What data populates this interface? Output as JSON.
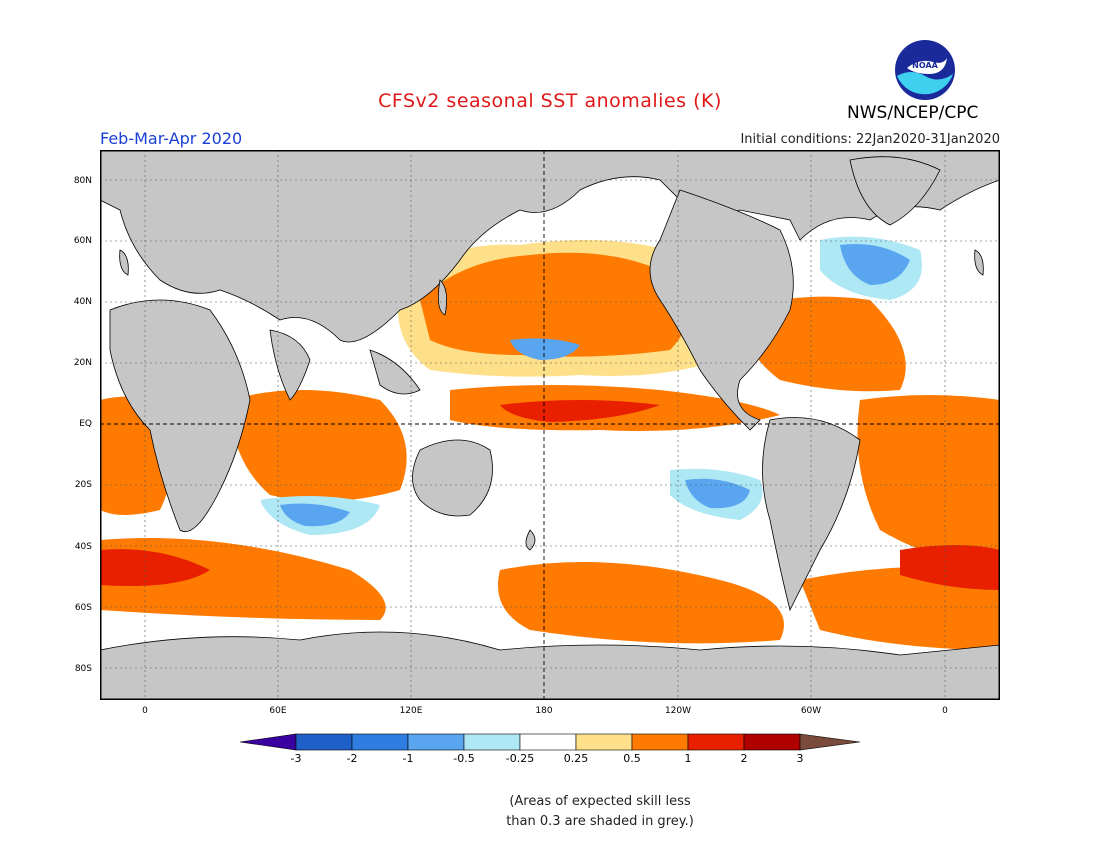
{
  "header": {
    "title": "CFSv2 seasonal SST anomalies (K)",
    "period": "Feb-Mar-Apr 2020",
    "initial_conditions": "Initial conditions: 22Jan2020-31Jan2020",
    "agency": "NWS/NCEP/CPC",
    "logo_text": "NOAA"
  },
  "axes": {
    "lat_labels": [
      "80N",
      "60N",
      "40N",
      "20N",
      "EQ",
      "20S",
      "40S",
      "60S",
      "80S"
    ],
    "lon_labels": [
      "0",
      "60E",
      "120E",
      "180",
      "120W",
      "60W",
      "0"
    ]
  },
  "colorbar": {
    "labels": [
      "-3",
      "-2",
      "-1",
      "-0.5",
      "-0.25",
      "0.25",
      "0.5",
      "1",
      "2",
      "3"
    ],
    "colors": [
      "#3a00a0",
      "#1f5fc8",
      "#2f7de0",
      "#5aa5f0",
      "#aee8f5",
      "#ffffff",
      "#ffe08a",
      "#ff7a00",
      "#e82000",
      "#b00000",
      "#7a4a3a"
    ]
  },
  "map_colors": {
    "land": "#c6c6c6",
    "ocean_neutral": "#ffffff",
    "warm1": "#ffe08a",
    "warm2": "#ff7a00",
    "warm3": "#e82000",
    "warm4": "#b00000",
    "cool1": "#aee8f5",
    "cool2": "#5aa5f0",
    "cool3": "#2f7de0",
    "low_skill_grey": "#c6c6c6"
  },
  "note": {
    "line1": "(Areas of expected skill less",
    "line2": "than 0.3 are shaded in grey.)"
  }
}
